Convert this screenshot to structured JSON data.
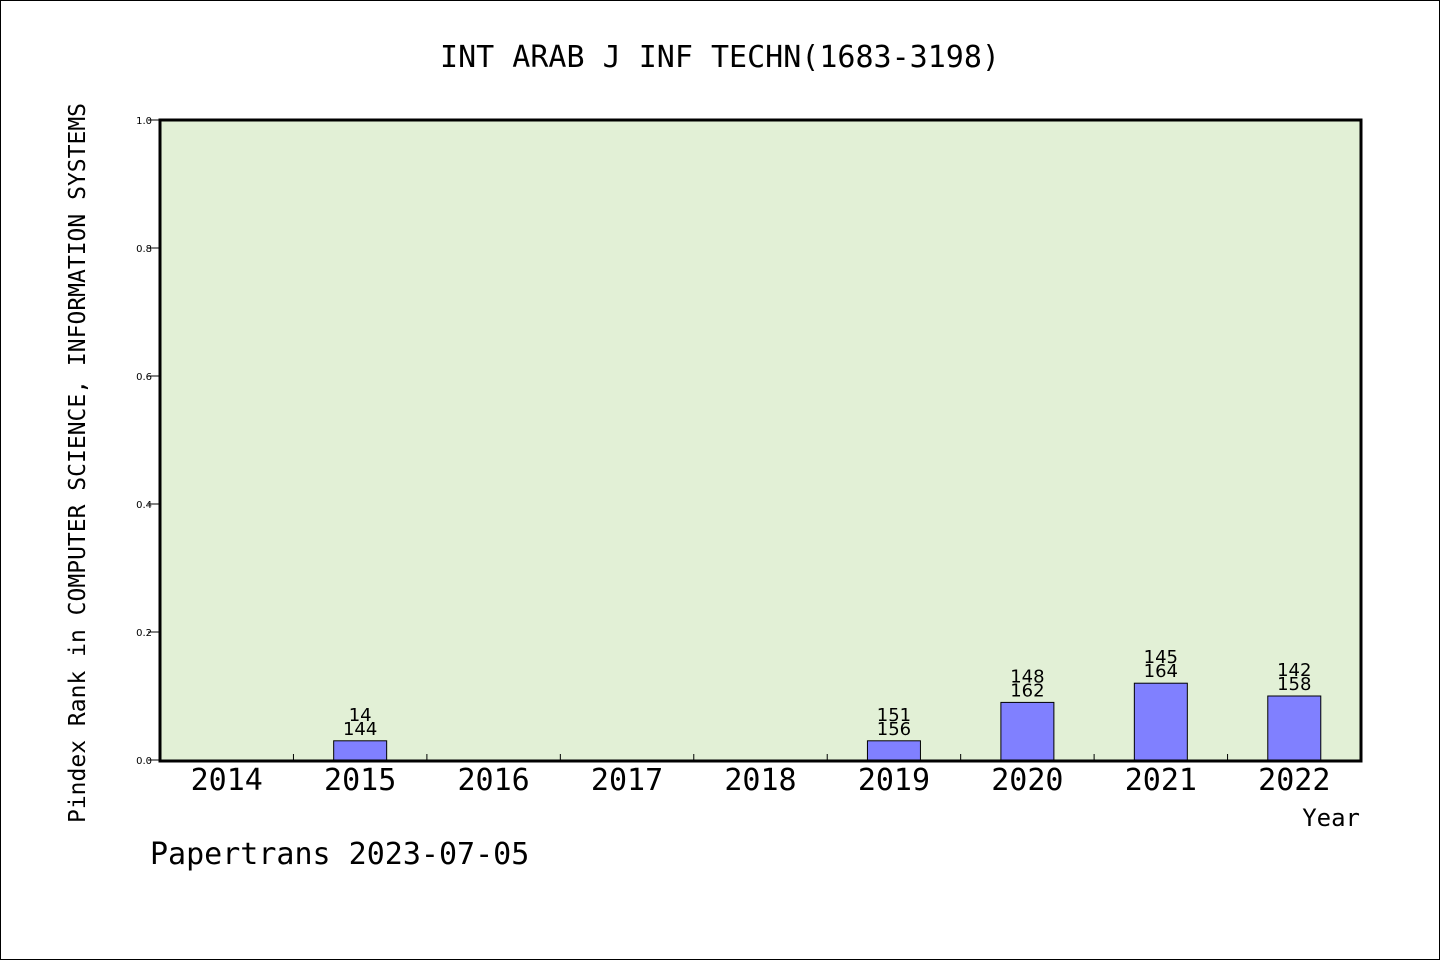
{
  "chart_data": {
    "type": "bar",
    "title": "INT ARAB J INF TECHN(1683-3198)",
    "xlabel": "Year",
    "ylabel": "Pindex Rank in COMPUTER SCIENCE, INFORMATION SYSTEMS",
    "categories": [
      "2014",
      "2015",
      "2016",
      "2017",
      "2018",
      "2019",
      "2020",
      "2021",
      "2022"
    ],
    "values": [
      0,
      0.03,
      0,
      0,
      0,
      0.03,
      0.09,
      0.12,
      0.1
    ],
    "bar_labels_top": [
      "",
      "14",
      "",
      "",
      "",
      "151",
      "148",
      "145",
      "142"
    ],
    "bar_labels_bottom": [
      "",
      "144",
      "",
      "",
      "",
      "156",
      "162",
      "164",
      "158"
    ],
    "ylim": [
      0,
      1.0
    ],
    "yticks": [
      "0.0",
      "0.2",
      "0.4",
      "0.6",
      "0.8",
      "1.0"
    ],
    "grid": false,
    "colors": {
      "plot_background": "#e2f0d6",
      "bar_fill": "#8080ff",
      "axis": "#000000"
    }
  },
  "footer": {
    "watermark": "Papertrans 2023-07-05"
  }
}
